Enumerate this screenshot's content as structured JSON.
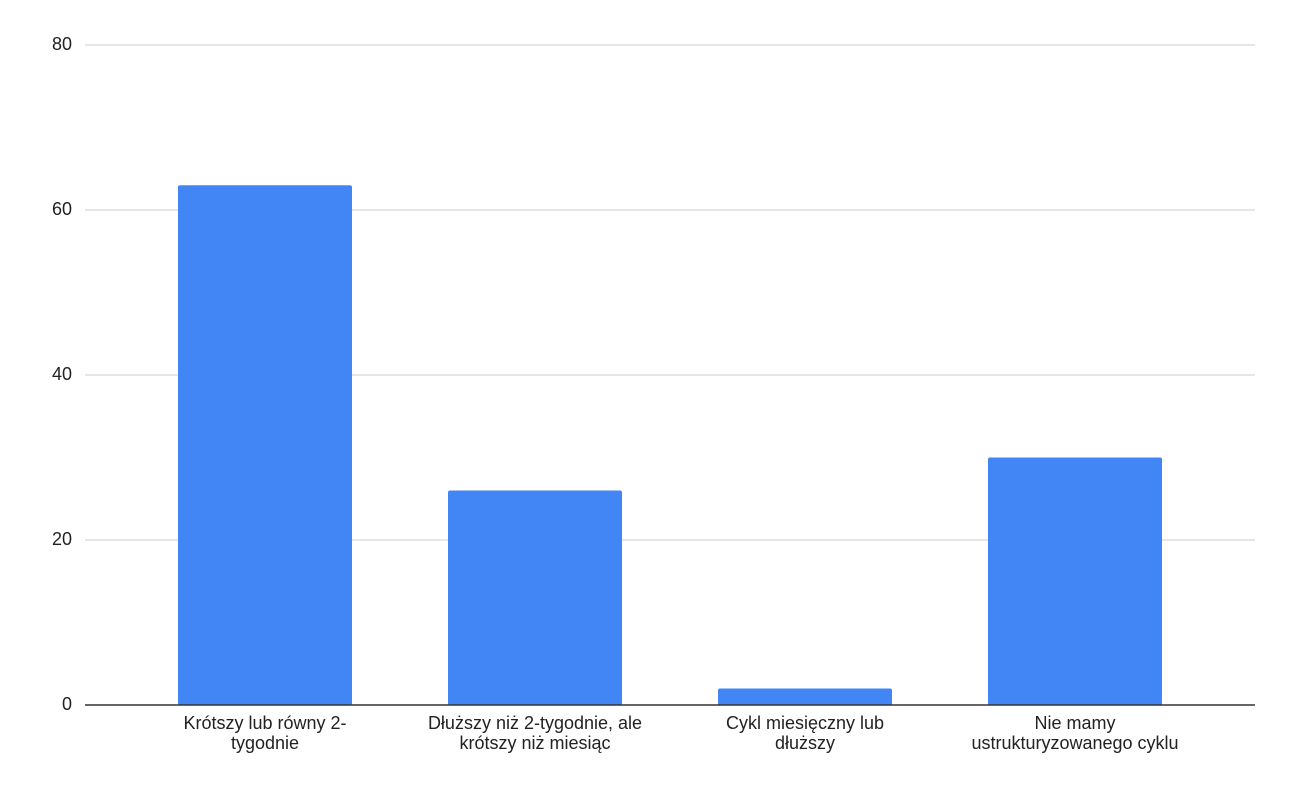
{
  "chart_data": {
    "type": "bar",
    "categories": [
      "Krótszy lub równy 2-tygodnie",
      "Dłuższy niż 2-tygodnie, ale krótszy niż miesiąc",
      "Cykl miesięczny lub dłuższy",
      "Nie mamy ustrukturyzowanego cyklu"
    ],
    "values": [
      63,
      26,
      2,
      30
    ],
    "color": "#4285f4",
    "ylim": [
      0,
      80
    ],
    "yticks": [
      0,
      20,
      40,
      60,
      80
    ],
    "grid": true
  }
}
